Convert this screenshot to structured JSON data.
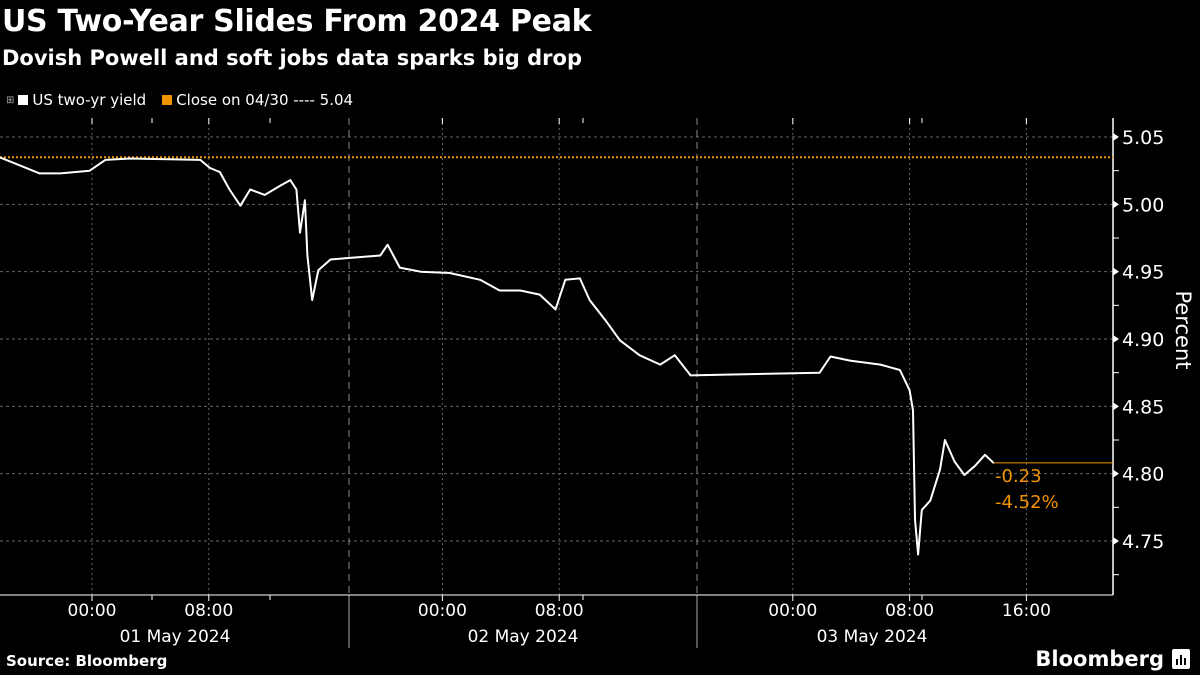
{
  "header": {
    "title": "US Two-Year Slides From 2024 Peak",
    "subtitle": "Dovish Powell and soft jobs data sparks big drop"
  },
  "legend": {
    "series_label": "US two-yr yield",
    "reference_label": "Close on 04/30 ---- 5.04"
  },
  "footer": {
    "source": "Source: Bloomberg",
    "logo": "Bloomberg"
  },
  "annotations": {
    "change": "-0.23",
    "change_pct": "-4.52%"
  },
  "colors": {
    "series": "#ffffff",
    "reference": "#f39200",
    "background": "#000000"
  },
  "chart_data": {
    "type": "line",
    "title": "US Two-Year Slides From 2024 Peak",
    "subtitle": "Dovish Powell and soft jobs data sparks big drop",
    "ylabel": "Percent",
    "xlabel": "",
    "ylim": [
      4.715,
      5.064
    ],
    "y_axis_side": "right",
    "y_ticks": [
      "5.05",
      "5.00",
      "4.95",
      "4.90",
      "4.85",
      "4.80",
      "4.75"
    ],
    "x_ticks": [
      {
        "t": "2024-05-01T00:00",
        "label": "00:00"
      },
      {
        "t": "2024-05-01T08:00",
        "label": "08:00"
      },
      {
        "t": "2024-05-02T00:00",
        "label": "00:00"
      },
      {
        "t": "2024-05-02T08:00",
        "label": "08:00"
      },
      {
        "t": "2024-05-03T00:00",
        "label": "00:00"
      },
      {
        "t": "2024-05-03T08:00",
        "label": "08:00"
      },
      {
        "t": "2024-05-03T16:00",
        "label": "16:00"
      }
    ],
    "date_labels": [
      "01 May 2024",
      "02 May 2024",
      "03 May 2024"
    ],
    "grid": true,
    "legend_position": "top-left",
    "reference_line": {
      "name": "Close on 04/30",
      "value": 5.035,
      "label": "5.04"
    },
    "last_value": 4.808,
    "series": [
      {
        "name": "US two-yr yield",
        "points": [
          [
            "2024-04-30T17:40",
            5.035
          ],
          [
            "2024-04-30T20:25",
            5.023
          ],
          [
            "2024-04-30T21:50",
            5.023
          ],
          [
            "2024-04-30T23:50",
            5.025
          ],
          [
            "2024-05-01T00:55",
            5.033
          ],
          [
            "2024-05-01T02:35",
            5.034
          ],
          [
            "2024-05-01T07:25",
            5.033
          ],
          [
            "2024-05-01T08:05",
            5.027
          ],
          [
            "2024-05-01T08:45",
            5.024
          ],
          [
            "2024-05-01T09:25",
            5.011
          ],
          [
            "2024-05-01T10:10",
            4.999
          ],
          [
            "2024-05-01T10:50",
            5.011
          ],
          [
            "2024-05-01T11:50",
            5.007
          ],
          [
            "2024-05-01T12:55",
            5.014
          ],
          [
            "2024-05-01T13:35",
            5.018
          ],
          [
            "2024-05-01T14:00",
            5.011
          ],
          [
            "2024-05-01T14:15",
            4.979
          ],
          [
            "2024-05-01T14:35",
            5.003
          ],
          [
            "2024-05-01T14:45",
            4.962
          ],
          [
            "2024-05-01T15:05",
            4.929
          ],
          [
            "2024-05-01T15:30",
            4.951
          ],
          [
            "2024-05-01T16:20",
            4.959
          ],
          [
            "2024-05-01T17:20",
            4.96
          ],
          [
            "2024-05-01T19:45",
            4.962
          ],
          [
            "2024-05-01T20:15",
            4.97
          ],
          [
            "2024-05-01T21:05",
            4.953
          ],
          [
            "2024-05-01T22:30",
            4.95
          ],
          [
            "2024-05-02T00:30",
            4.949
          ],
          [
            "2024-05-02T02:35",
            4.944
          ],
          [
            "2024-05-02T03:55",
            4.936
          ],
          [
            "2024-05-02T05:20",
            4.936
          ],
          [
            "2024-05-02T06:40",
            4.933
          ],
          [
            "2024-05-02T07:45",
            4.922
          ],
          [
            "2024-05-02T08:25",
            4.944
          ],
          [
            "2024-05-02T09:25",
            4.945
          ],
          [
            "2024-05-02T10:05",
            4.929
          ],
          [
            "2024-05-02T11:10",
            4.914
          ],
          [
            "2024-05-02T12:10",
            4.899
          ],
          [
            "2024-05-02T13:30",
            4.888
          ],
          [
            "2024-05-02T14:55",
            4.881
          ],
          [
            "2024-05-02T15:55",
            4.888
          ],
          [
            "2024-05-02T17:00",
            4.873
          ],
          [
            "2024-05-03T01:50",
            4.875
          ],
          [
            "2024-05-03T02:35",
            4.887
          ],
          [
            "2024-05-03T03:55",
            4.884
          ],
          [
            "2024-05-03T06:00",
            4.881
          ],
          [
            "2024-05-03T07:20",
            4.877
          ],
          [
            "2024-05-03T08:00",
            4.862
          ],
          [
            "2024-05-03T08:14",
            4.847
          ],
          [
            "2024-05-03T08:22",
            4.766
          ],
          [
            "2024-05-03T08:35",
            4.74
          ],
          [
            "2024-05-03T08:50",
            4.773
          ],
          [
            "2024-05-03T09:25",
            4.78
          ],
          [
            "2024-05-03T10:05",
            4.803
          ],
          [
            "2024-05-03T10:25",
            4.825
          ],
          [
            "2024-05-03T11:05",
            4.809
          ],
          [
            "2024-05-03T11:45",
            4.799
          ],
          [
            "2024-05-03T12:30",
            4.806
          ],
          [
            "2024-05-03T13:10",
            4.814
          ],
          [
            "2024-05-03T13:45",
            4.808
          ]
        ]
      }
    ]
  }
}
